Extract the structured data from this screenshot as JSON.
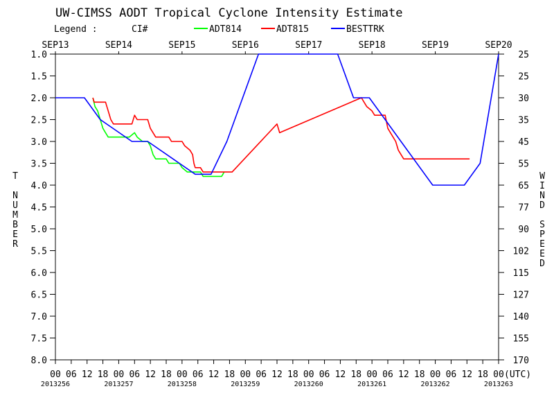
{
  "chart_data": {
    "type": "line",
    "title": "UW-CIMSS AODT Tropical Cyclone Intensity Estimate",
    "legend": {
      "heading": "Legend :",
      "ci_label": "CI#",
      "entries": [
        "ADT814",
        "ADT815",
        "BESTTRK"
      ],
      "placement": "top"
    },
    "x_axis": {
      "range_hours": [
        0,
        168
      ],
      "top_date_labels": [
        {
          "label": "SEP13",
          "hour": 0
        },
        {
          "label": "SEP14",
          "hour": 24
        },
        {
          "label": "SEP15",
          "hour": 48
        },
        {
          "label": "SEP16",
          "hour": 72
        },
        {
          "label": "SEP17",
          "hour": 96
        },
        {
          "label": "SEP18",
          "hour": 120
        },
        {
          "label": "SEP19",
          "hour": 144
        },
        {
          "label": "SEP20",
          "hour": 168
        }
      ],
      "hour_labels": [
        "00",
        "06",
        "12",
        "18"
      ],
      "final_hour_label": "00",
      "utc_label": "(UTC)",
      "julian_labels": [
        {
          "label": "2013256",
          "hour": 0
        },
        {
          "label": "2013257",
          "hour": 24
        },
        {
          "label": "2013258",
          "hour": 48
        },
        {
          "label": "2013259",
          "hour": 72
        },
        {
          "label": "2013260",
          "hour": 96
        },
        {
          "label": "2013261",
          "hour": 120
        },
        {
          "label": "2013262",
          "hour": 144
        },
        {
          "label": "2013263",
          "hour": 168
        }
      ]
    },
    "y_left": {
      "label": "T NUMBER",
      "range": [
        1.0,
        8.0
      ],
      "inverted": true,
      "ticks": [
        "1.0",
        "1.5",
        "2.0",
        "2.5",
        "3.0",
        "3.5",
        "4.0",
        "4.5",
        "5.0",
        "5.5",
        "6.0",
        "6.5",
        "7.0",
        "7.5",
        "8.0"
      ]
    },
    "y_right": {
      "label": "WIND SPEED",
      "ticks": [
        "25",
        "25",
        "30",
        "35",
        "45",
        "55",
        "65",
        "77",
        "90",
        "102",
        "115",
        "127",
        "140",
        "155",
        "170"
      ]
    },
    "grid": false,
    "series": [
      {
        "name": "ADT814",
        "color": "#00ff00",
        "points": [
          [
            14.2,
            2.0
          ],
          [
            15,
            2.2
          ],
          [
            16,
            2.3
          ],
          [
            17,
            2.5
          ],
          [
            18,
            2.7
          ],
          [
            19,
            2.8
          ],
          [
            20,
            2.9
          ],
          [
            24,
            2.9
          ],
          [
            28,
            2.9
          ],
          [
            30,
            2.8
          ],
          [
            31,
            2.9
          ],
          [
            33,
            3.0
          ],
          [
            35,
            3.0
          ],
          [
            36,
            3.1
          ],
          [
            37,
            3.3
          ],
          [
            38,
            3.4
          ],
          [
            42,
            3.4
          ],
          [
            43,
            3.5
          ],
          [
            47,
            3.5
          ],
          [
            48,
            3.6
          ],
          [
            50,
            3.7
          ],
          [
            55,
            3.7
          ],
          [
            56,
            3.8
          ],
          [
            63,
            3.8
          ],
          [
            64,
            3.7
          ]
        ]
      },
      {
        "name": "ADT815",
        "color": "#ff0000",
        "points": [
          [
            14.2,
            2.0
          ],
          [
            14.7,
            2.1
          ],
          [
            19,
            2.1
          ],
          [
            20,
            2.3
          ],
          [
            21,
            2.5
          ],
          [
            22,
            2.6
          ],
          [
            29,
            2.6
          ],
          [
            30,
            2.4
          ],
          [
            31,
            2.5
          ],
          [
            35,
            2.5
          ],
          [
            36,
            2.7
          ],
          [
            37,
            2.8
          ],
          [
            38,
            2.9
          ],
          [
            43,
            2.9
          ],
          [
            44,
            3.0
          ],
          [
            48,
            3.0
          ],
          [
            49,
            3.1
          ],
          [
            51,
            3.2
          ],
          [
            52,
            3.3
          ],
          [
            52.5,
            3.5
          ],
          [
            53,
            3.6
          ],
          [
            55,
            3.6
          ],
          [
            56,
            3.7
          ],
          [
            67,
            3.7
          ],
          [
            84,
            2.6
          ],
          [
            85,
            2.8
          ],
          [
            116,
            2.0
          ],
          [
            117,
            2.1
          ],
          [
            118,
            2.2
          ],
          [
            120,
            2.3
          ],
          [
            121,
            2.4
          ],
          [
            125,
            2.4
          ],
          [
            126,
            2.7
          ],
          [
            127,
            2.8
          ],
          [
            128,
            2.9
          ],
          [
            129,
            3.0
          ],
          [
            130,
            3.2
          ],
          [
            132,
            3.4
          ],
          [
            157,
            3.4
          ]
        ]
      },
      {
        "name": "BESTTRK",
        "color": "#0000ff",
        "points": [
          [
            0,
            2.0
          ],
          [
            11,
            2.0
          ],
          [
            17,
            2.5
          ],
          [
            29,
            3.0
          ],
          [
            35,
            3.0
          ],
          [
            53,
            3.75
          ],
          [
            59,
            3.75
          ],
          [
            65,
            3.0
          ],
          [
            77,
            1.0
          ],
          [
            107,
            1.0
          ],
          [
            113,
            2.0
          ],
          [
            119,
            2.0
          ],
          [
            125,
            2.5
          ],
          [
            131,
            3.0
          ],
          [
            143,
            4.0
          ],
          [
            155,
            4.0
          ],
          [
            161,
            3.5
          ],
          [
            168,
            1.0
          ]
        ]
      }
    ]
  }
}
